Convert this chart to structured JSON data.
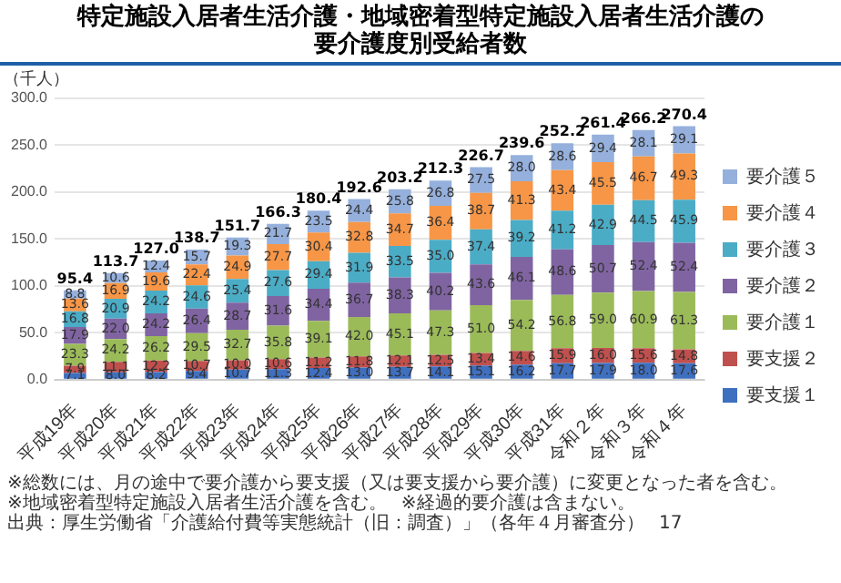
{
  "chart_data": {
    "type": "bar",
    "title": "特定施設入居者生活介護・地域密着型特定施設入居者生活介護の要介護度別受給者数",
    "ylabel": "（千人）",
    "categories": [
      "平成19年",
      "平成20年",
      "平成21年",
      "平成22年",
      "平成23年",
      "平成24年",
      "平成25年",
      "平成26年",
      "平成27年",
      "平成28年",
      "平成29年",
      "平成30年",
      "平成31年",
      "令和２年",
      "令和３年",
      "令和４年"
    ],
    "stacked": true,
    "grid": "y",
    "legend": "right",
    "ylim": [
      0,
      300
    ],
    "yticks": [
      {
        "value": 0,
        "label": "0.0"
      },
      {
        "value": 50,
        "label": "50.0"
      },
      {
        "value": 100,
        "label": "100.0"
      },
      {
        "value": 150,
        "label": "150.0"
      },
      {
        "value": 200,
        "label": "200.0"
      },
      {
        "value": 250,
        "label": "250.0"
      },
      {
        "value": 300,
        "label": "300.0"
      }
    ],
    "series": [
      {
        "name": "要支援１",
        "color": "#3f6fbf",
        "values": [
          7.1,
          8.0,
          8.2,
          9.4,
          10.7,
          11.3,
          12.4,
          13.0,
          13.7,
          14.1,
          15.1,
          16.2,
          17.7,
          17.9,
          18.0,
          17.6
        ],
        "value_labels": [
          "7.1",
          "8.0",
          "8.2",
          "9.4",
          "10.7",
          "11.3",
          "12.4",
          "13.0",
          "13.7",
          "14.1",
          "15.1",
          "16.2",
          "17.7",
          "17.9",
          "18.0",
          "17.6"
        ]
      },
      {
        "name": "要支援２",
        "color": "#c0504d",
        "values": [
          7.9,
          11.1,
          12.2,
          10.7,
          10.0,
          10.6,
          11.2,
          11.8,
          12.1,
          12.5,
          13.4,
          14.6,
          15.9,
          16.0,
          15.6,
          14.8
        ],
        "value_labels": [
          "7.9",
          "11.1",
          "12.2",
          "10.7",
          "10.0",
          "10.6",
          "11.2",
          "11.8",
          "12.1",
          "12.5",
          "13.4",
          "14.6",
          "15.9",
          "16.0",
          "15.6",
          "14.8"
        ]
      },
      {
        "name": "要介護１",
        "color": "#9bbb59",
        "values": [
          23.3,
          24.2,
          26.2,
          29.5,
          32.7,
          35.8,
          39.1,
          42.0,
          45.1,
          47.3,
          51.0,
          54.2,
          56.8,
          59.0,
          60.9,
          61.3
        ],
        "value_labels": [
          "23.3",
          "24.2",
          "26.2",
          "29.5",
          "32.7",
          "35.8",
          "39.1",
          "42.0",
          "45.1",
          "47.3",
          "51.0",
          "54.2",
          "56.8",
          "59.0",
          "60.9",
          "61.3"
        ]
      },
      {
        "name": "要介護２",
        "color": "#8064a2",
        "values": [
          17.9,
          22.0,
          24.2,
          26.4,
          28.7,
          31.6,
          34.4,
          36.7,
          38.3,
          40.2,
          43.6,
          46.1,
          48.6,
          50.7,
          52.4,
          52.4
        ],
        "value_labels": [
          "17.9",
          "22.0",
          "24.2",
          "26.4",
          "28.7",
          "31.6",
          "34.4",
          "36.7",
          "38.3",
          "40.2",
          "43.6",
          "46.1",
          "48.6",
          "50.7",
          "52.4",
          "52.4"
        ]
      },
      {
        "name": "要介護３",
        "color": "#4bacc6",
        "values": [
          16.8,
          20.9,
          24.2,
          24.6,
          25.4,
          27.6,
          29.4,
          31.9,
          33.5,
          35.0,
          37.4,
          39.2,
          41.2,
          42.9,
          44.5,
          45.9
        ],
        "value_labels": [
          "16.8",
          "20.9",
          "24.2",
          "24.6",
          "25.4",
          "27.6",
          "29.4",
          "31.9",
          "33.5",
          "35.0",
          "37.4",
          "39.2",
          "41.2",
          "42.9",
          "44.5",
          "45.9"
        ]
      },
      {
        "name": "要介護４",
        "color": "#f79646",
        "values": [
          13.6,
          16.9,
          19.6,
          22.4,
          24.9,
          27.7,
          30.4,
          32.8,
          34.7,
          36.4,
          38.7,
          41.3,
          43.4,
          45.5,
          46.7,
          49.3
        ],
        "value_labels": [
          "13.6",
          "16.9",
          "19.6",
          "22.4",
          "24.9",
          "27.7",
          "30.4",
          "32.8",
          "34.7",
          "36.4",
          "38.7",
          "41.3",
          "43.4",
          "45.5",
          "46.7",
          "49.3"
        ]
      },
      {
        "name": "要介護５",
        "color": "#95b0dc",
        "values": [
          8.8,
          10.6,
          12.4,
          15.7,
          19.3,
          21.7,
          23.5,
          24.4,
          25.8,
          26.8,
          27.5,
          28.0,
          28.6,
          29.4,
          28.1,
          29.1
        ],
        "value_labels": [
          "8.8",
          "10.6",
          "12.4",
          "15.7",
          "19.3",
          "21.7",
          "23.5",
          "24.4",
          "25.8",
          "26.8",
          "27.5",
          "28.0",
          "28.6",
          "29.4",
          "28.1",
          "29.1"
        ]
      }
    ],
    "totals": [
      "95.4",
      "113.7",
      "127.0",
      "138.7",
      "151.7",
      "166.3",
      "180.4",
      "192.6",
      "203.2",
      "212.3",
      "226.7",
      "239.6",
      "252.2",
      "261.4",
      "266.2",
      "270.4"
    ],
    "annotations": [
      "※総数には、月の途中で要介護から要支援（又は要支援から要介護）に変更となった者を含む。",
      "※地域密着型特定施設入居者生活介護を含む。",
      "※経過的要介護は含まない。",
      "出典：厚生労働省「介護給付費等実態統計（旧：調査）」（各年４月審査分）",
      "17"
    ]
  }
}
